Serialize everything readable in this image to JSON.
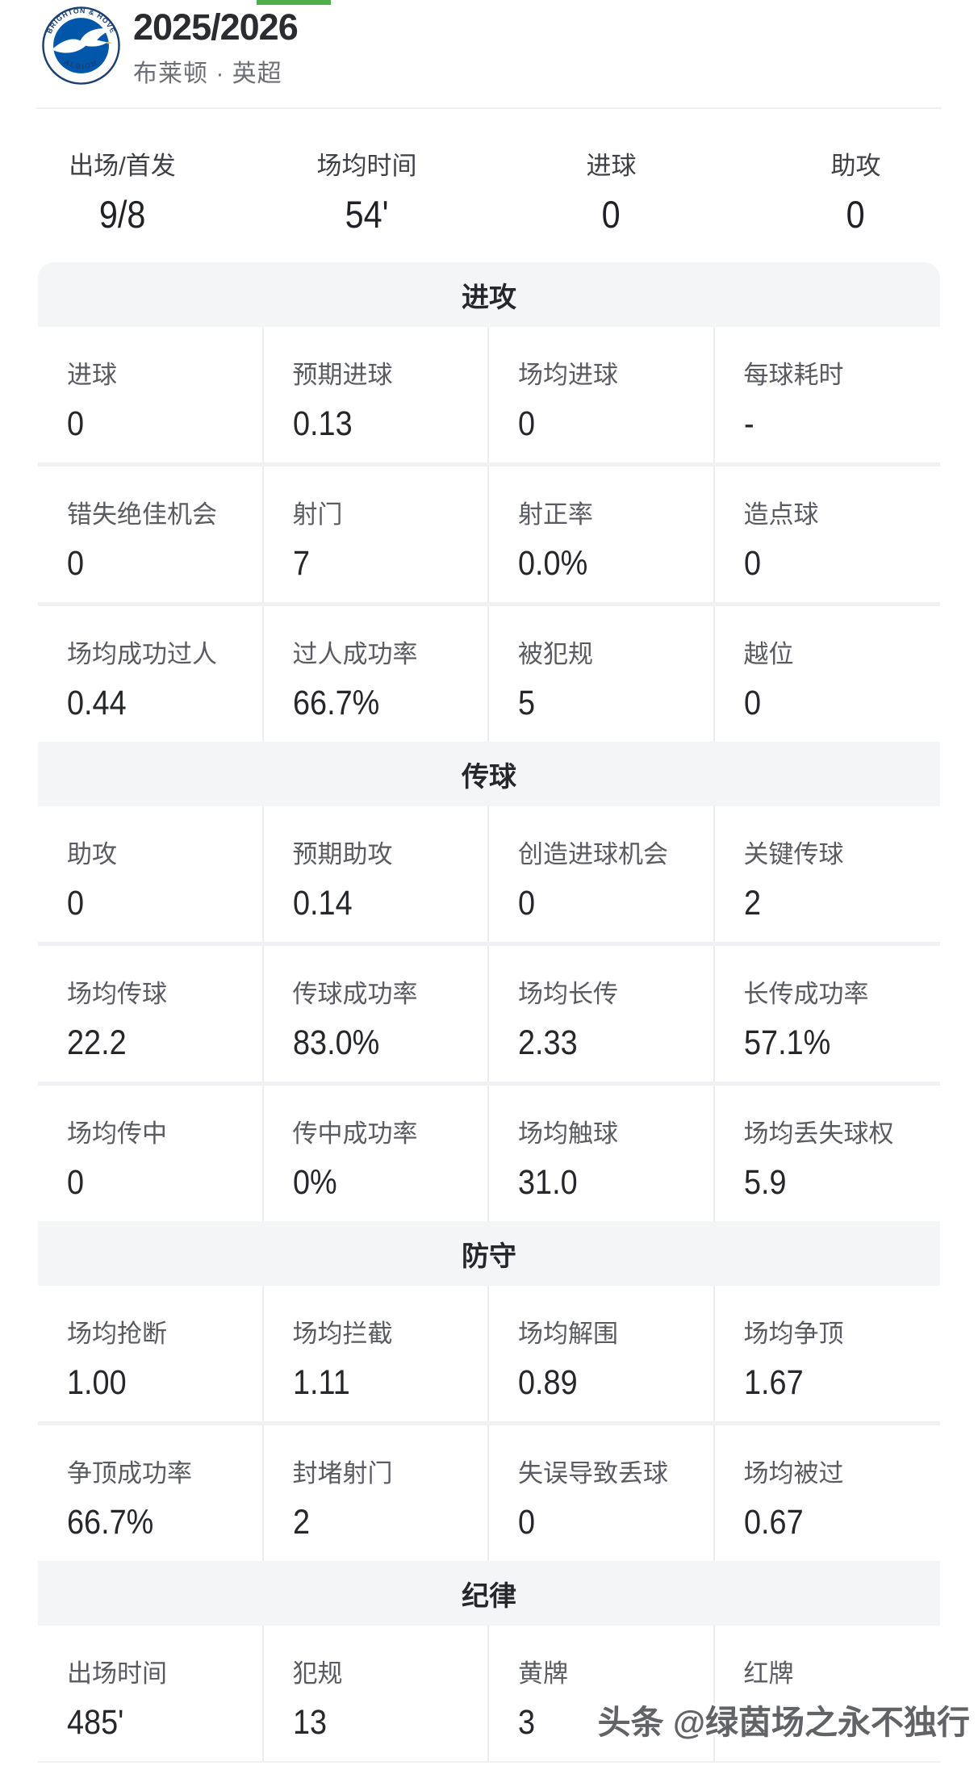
{
  "header": {
    "season": "2025/2026",
    "subtitle": "布莱顿 · 英超",
    "badge": {
      "top_text": "BRIGHTON & HOVE",
      "bottom_text": "ALBION"
    }
  },
  "colors": {
    "accent_green": "#4caf50",
    "badge_blue": "#0056a8",
    "badge_navy": "#1b3f72",
    "section_band": "#f4f5f6",
    "label_gray": "#5a5b60",
    "value_black": "#26272b"
  },
  "summary": {
    "items": [
      {
        "label": "出场/首发",
        "value": "9/8"
      },
      {
        "label": "场均时间",
        "value": "54'"
      },
      {
        "label": "进球",
        "value": "0"
      },
      {
        "label": "助攻",
        "value": "0"
      }
    ]
  },
  "sections": [
    {
      "title": "进攻",
      "rows": [
        [
          {
            "label": "进球",
            "value": "0"
          },
          {
            "label": "预期进球",
            "value": "0.13"
          },
          {
            "label": "场均进球",
            "value": "0"
          },
          {
            "label": "每球耗时",
            "value": "-"
          }
        ],
        [
          {
            "label": "错失绝佳机会",
            "value": "0"
          },
          {
            "label": "射门",
            "value": "7"
          },
          {
            "label": "射正率",
            "value": "0.0%"
          },
          {
            "label": "造点球",
            "value": "0"
          }
        ],
        [
          {
            "label": "场均成功过人",
            "value": "0.44"
          },
          {
            "label": "过人成功率",
            "value": "66.7%"
          },
          {
            "label": "被犯规",
            "value": "5"
          },
          {
            "label": "越位",
            "value": "0"
          }
        ]
      ]
    },
    {
      "title": "传球",
      "rows": [
        [
          {
            "label": "助攻",
            "value": "0"
          },
          {
            "label": "预期助攻",
            "value": "0.14"
          },
          {
            "label": "创造进球机会",
            "value": "0"
          },
          {
            "label": "关键传球",
            "value": "2"
          }
        ],
        [
          {
            "label": "场均传球",
            "value": "22.2"
          },
          {
            "label": "传球成功率",
            "value": "83.0%"
          },
          {
            "label": "场均长传",
            "value": "2.33"
          },
          {
            "label": "长传成功率",
            "value": "57.1%"
          }
        ],
        [
          {
            "label": "场均传中",
            "value": "0"
          },
          {
            "label": "传中成功率",
            "value": "0%"
          },
          {
            "label": "场均触球",
            "value": "31.0"
          },
          {
            "label": "场均丢失球权",
            "value": "5.9"
          }
        ]
      ]
    },
    {
      "title": "防守",
      "rows": [
        [
          {
            "label": "场均抢断",
            "value": "1.00"
          },
          {
            "label": "场均拦截",
            "value": "1.11"
          },
          {
            "label": "场均解围",
            "value": "0.89"
          },
          {
            "label": "场均争顶",
            "value": "1.67"
          }
        ],
        [
          {
            "label": "争顶成功率",
            "value": "66.7%"
          },
          {
            "label": "封堵射门",
            "value": "2"
          },
          {
            "label": "失误导致丢球",
            "value": "0"
          },
          {
            "label": "场均被过",
            "value": "0.67"
          }
        ]
      ]
    },
    {
      "title": "纪律",
      "rows": [
        [
          {
            "label": "出场时间",
            "value": "485'"
          },
          {
            "label": "犯规",
            "value": "13"
          },
          {
            "label": "黄牌",
            "value": "3"
          },
          {
            "label": "红牌",
            "value": "0"
          }
        ]
      ]
    }
  ],
  "watermark": "头条 @绿茵场之永不独行"
}
